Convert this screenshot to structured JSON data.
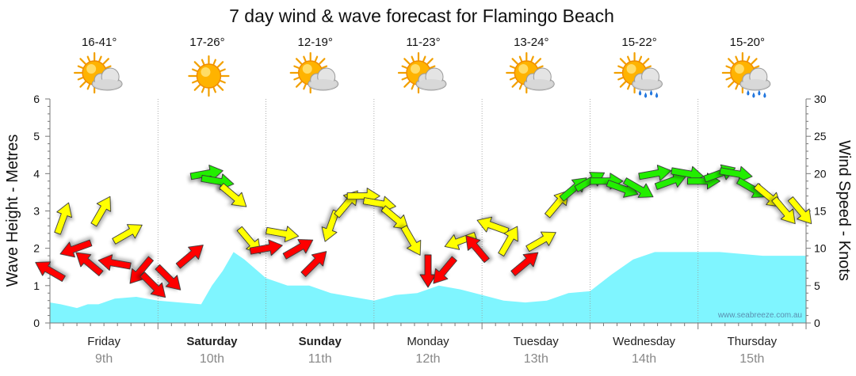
{
  "chart_data": {
    "type": "line",
    "title": "7 day wind & wave forecast for Flamingo Beach",
    "ylabel_left": "Wave Height - Metres",
    "ylabel_right": "Wind Speed - Knots",
    "ylim_left": [
      0,
      6
    ],
    "ylim_right": [
      0,
      30
    ],
    "yticks_left": [
      "0",
      "1",
      "2",
      "3",
      "4",
      "5",
      "6"
    ],
    "yticks_right": [
      "0",
      "5",
      "10",
      "15",
      "20",
      "25",
      "30"
    ],
    "watermark": "www.seabreeze.com.au",
    "days": [
      {
        "name": "Friday",
        "date": "9th",
        "bold": false,
        "temp": "16-41°",
        "icon": "partly-cloudy-icon"
      },
      {
        "name": "Saturday",
        "date": "10th",
        "bold": true,
        "temp": "17-26°",
        "icon": "sun-icon"
      },
      {
        "name": "Sunday",
        "date": "11th",
        "bold": true,
        "temp": "12-19°",
        "icon": "partly-cloudy-icon"
      },
      {
        "name": "Monday",
        "date": "12th",
        "bold": false,
        "temp": "11-23°",
        "icon": "partly-cloudy-icon"
      },
      {
        "name": "Tuesday",
        "date": "13th",
        "bold": false,
        "temp": "13-24°",
        "icon": "partly-cloudy-icon"
      },
      {
        "name": "Wednesday",
        "date": "14th",
        "bold": false,
        "temp": "15-22°",
        "icon": "sun-rain-icon"
      },
      {
        "name": "Thursday",
        "date": "15th",
        "bold": false,
        "temp": "15-20°",
        "icon": "sun-rain-icon"
      }
    ],
    "wave_series": {
      "name": "Wave Height",
      "unit": "m",
      "x_days": [
        0,
        0.1,
        0.25,
        0.35,
        0.45,
        0.6,
        0.8,
        1.0,
        1.2,
        1.4,
        1.5,
        1.6,
        1.7,
        1.8,
        2.0,
        2.2,
        2.4,
        2.6,
        2.8,
        3.0,
        3.2,
        3.4,
        3.6,
        3.8,
        4.0,
        4.2,
        4.4,
        4.6,
        4.8,
        5.0,
        5.2,
        5.4,
        5.6,
        5.8,
        6.0,
        6.2,
        6.4,
        6.6,
        6.8,
        7.0
      ],
      "values": [
        0.55,
        0.5,
        0.4,
        0.5,
        0.5,
        0.65,
        0.7,
        0.6,
        0.55,
        0.5,
        1.0,
        1.4,
        1.9,
        1.7,
        1.2,
        1.0,
        1.0,
        0.8,
        0.7,
        0.6,
        0.75,
        0.8,
        1.0,
        0.9,
        0.75,
        0.6,
        0.55,
        0.6,
        0.8,
        0.85,
        1.3,
        1.7,
        1.9,
        1.9,
        1.9,
        1.9,
        1.85,
        1.8,
        1.8,
        1.8
      ]
    },
    "wind_series": {
      "name": "Wind Speed",
      "unit": "knots",
      "x_days": [
        0.0,
        0.12,
        0.24,
        0.36,
        0.48,
        0.6,
        0.72,
        0.84,
        0.96,
        1.1,
        1.3,
        1.45,
        1.55,
        1.7,
        1.85,
        2.0,
        2.15,
        2.3,
        2.45,
        2.6,
        2.75,
        2.9,
        3.05,
        3.2,
        3.35,
        3.5,
        3.65,
        3.8,
        3.95,
        4.1,
        4.25,
        4.4,
        4.55,
        4.7,
        4.85,
        5.0,
        5.15,
        5.3,
        5.45,
        5.6,
        5.75,
        5.9,
        6.05,
        6.2,
        6.35,
        6.5,
        6.65,
        6.8,
        6.95
      ],
      "values": [
        7,
        14,
        10,
        8,
        15,
        8,
        12,
        7,
        5,
        6,
        9,
        20,
        19,
        17,
        11,
        10,
        12,
        10,
        8,
        13,
        16,
        17,
        16,
        14,
        11,
        7,
        7,
        11,
        10,
        13,
        11,
        8,
        11,
        16,
        18,
        19,
        19,
        18,
        18,
        20,
        19,
        20,
        19,
        20,
        20,
        18,
        17,
        15,
        15
      ],
      "directions_deg": [
        300,
        20,
        250,
        310,
        30,
        280,
        60,
        220,
        135,
        135,
        50,
        80,
        100,
        130,
        140,
        80,
        100,
        60,
        45,
        200,
        40,
        90,
        100,
        130,
        150,
        180,
        220,
        250,
        320,
        290,
        30,
        50,
        60,
        40,
        50,
        60,
        90,
        110,
        120,
        80,
        70,
        100,
        90,
        70,
        100,
        120,
        130,
        140,
        140
      ],
      "color_bands": [
        {
          "max_knots": 10,
          "color": "#ff0000"
        },
        {
          "max_knots": 17,
          "color": "#ffff00"
        },
        {
          "max_knots": 99,
          "color": "#22ee00"
        }
      ]
    },
    "colors": {
      "wave_fill": "#7ff5ff",
      "grid": "#999999"
    }
  }
}
